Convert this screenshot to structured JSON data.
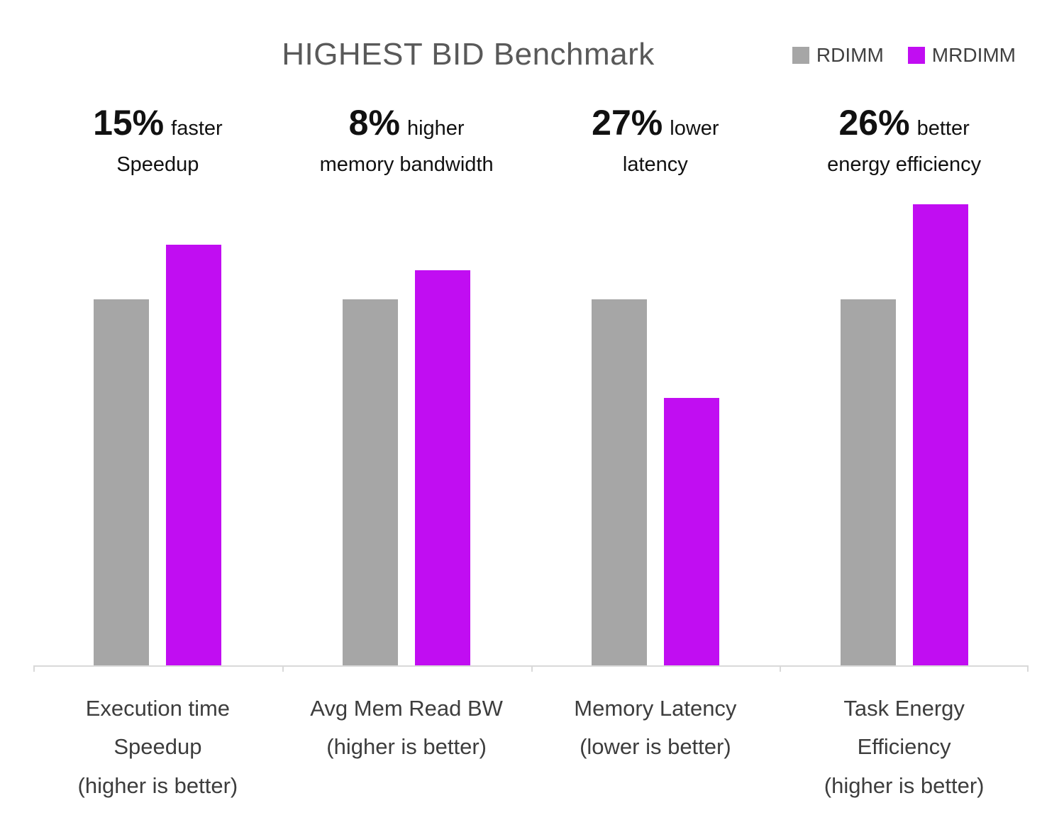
{
  "chart_data": {
    "type": "bar",
    "title": "HIGHEST BID Benchmark",
    "categories": [
      "Execution time\nSpeedup\n(higher is better)",
      "Avg Mem Read BW\n(higher is better)",
      "Memory Latency\n(lower is better)",
      "Task Energy\nEfficiency\n(higher is better)"
    ],
    "series": [
      {
        "name": "RDIMM",
        "color": "#A6A6A6",
        "values": [
          1.0,
          1.0,
          1.0,
          1.0
        ]
      },
      {
        "name": "MRDIMM",
        "color": "#C10DF2",
        "values": [
          1.15,
          1.08,
          0.73,
          1.26
        ]
      }
    ],
    "value_basis": "normalized, RDIMM = 1.0 baseline",
    "ylim": [
      0,
      1.3
    ],
    "grid": false,
    "legend_position": "top-right",
    "annotations": [
      {
        "big": "15%",
        "small": "faster",
        "line2": "Speedup"
      },
      {
        "big": "8%",
        "small": "higher",
        "line2": "memory  bandwidth"
      },
      {
        "big": "27%",
        "small": "lower",
        "line2": "latency"
      },
      {
        "big": "26%",
        "small": "better",
        "line2": "energy efficiency"
      }
    ]
  }
}
